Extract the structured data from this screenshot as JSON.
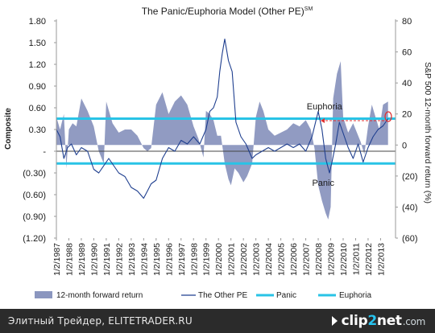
{
  "chart_data": {
    "type": "area",
    "title": "The Panic/Euphoria Model (Other PE)",
    "title_superscript": "SM",
    "ylabel_left": "Composite",
    "ylabel_right": "S&P 500 12-month forward return (%)",
    "ylim_left": [
      -1.2,
      1.8
    ],
    "ylim_right": [
      -60,
      80
    ],
    "yticks_left": [
      "1.80",
      "1.50",
      "1.20",
      "0.90",
      "0.60",
      "0.30",
      "-",
      "(0.30)",
      "(0.60)",
      "(0.90)",
      "(1.20)"
    ],
    "yticks_right": [
      "80",
      "60",
      "40",
      "20",
      "0",
      "(20)",
      "(40)",
      "(60)"
    ],
    "xticks": [
      "1/2/1987",
      "1/2/1988",
      "1/2/1989",
      "1/2/1990",
      "1/2/1991",
      "1/2/1992",
      "1/2/1993",
      "1/2/1994",
      "1/2/1995",
      "1/2/1996",
      "1/2/1997",
      "1/2/1998",
      "1/2/1999",
      "1/2/2000",
      "1/2/2001",
      "1/2/2002",
      "1/2/2003",
      "1/2/2004",
      "1/2/2005",
      "1/2/2006",
      "1/2/2007",
      "1/2/2008",
      "1/2/2009",
      "1/2/2010",
      "1/2/2011",
      "1/2/2012",
      "1/2/2013"
    ],
    "series": [
      {
        "name": "12-month forward return",
        "axis": "right",
        "color": "#8b96bf",
        "x": [
          1987.0,
          1987.3,
          1987.6,
          1987.8,
          1988.0,
          1988.3,
          1988.6,
          1989.0,
          1989.5,
          1990.0,
          1990.4,
          1990.8,
          1991.0,
          1991.5,
          1992.0,
          1992.5,
          1993.0,
          1993.5,
          1994.0,
          1994.3,
          1994.6,
          1995.0,
          1995.5,
          1996.0,
          1996.5,
          1997.0,
          1997.5,
          1998.0,
          1998.4,
          1998.8,
          1999.0,
          1999.3,
          1999.6,
          1999.9,
          2000.2,
          2000.5,
          2000.8,
          2001.0,
          2001.3,
          2001.6,
          2002.0,
          2002.3,
          2002.7,
          2003.0,
          2003.3,
          2003.6,
          2004.0,
          2004.5,
          2005.0,
          2005.5,
          2006.0,
          2006.5,
          2007.0,
          2007.4,
          2007.7,
          2008.0,
          2008.3,
          2008.6,
          2008.8,
          2009.0,
          2009.2,
          2009.5,
          2009.8,
          2010.0,
          2010.4,
          2010.8,
          2011.0,
          2011.4,
          2011.7,
          2012.0,
          2012.3,
          2012.6,
          2012.9,
          2013.2,
          2013.6
        ],
        "values": [
          18,
          10,
          20,
          -15,
          10,
          14,
          12,
          30,
          22,
          12,
          -4,
          -12,
          28,
          14,
          8,
          10,
          10,
          6,
          -2,
          -4,
          -2,
          26,
          34,
          20,
          28,
          32,
          26,
          12,
          4,
          -8,
          22,
          20,
          16,
          6,
          6,
          -12,
          -22,
          -26,
          -15,
          -18,
          -24,
          -20,
          -12,
          18,
          28,
          22,
          10,
          6,
          8,
          10,
          14,
          12,
          16,
          10,
          -2,
          -26,
          -36,
          -44,
          -48,
          -40,
          30,
          46,
          54,
          18,
          8,
          14,
          10,
          2,
          -6,
          12,
          26,
          18,
          10,
          26,
          28
        ]
      },
      {
        "name": "The Other PE",
        "axis": "left",
        "color": "#1f3f8f",
        "x": [
          1987.0,
          1987.3,
          1987.6,
          1987.9,
          1988.2,
          1988.6,
          1989.0,
          1989.5,
          1990.0,
          1990.4,
          1990.8,
          1991.2,
          1991.6,
          1992.0,
          1992.5,
          1993.0,
          1993.5,
          1994.0,
          1994.3,
          1994.6,
          1995.0,
          1995.5,
          1996.0,
          1996.5,
          1997.0,
          1997.5,
          1998.0,
          1998.5,
          1999.0,
          1999.3,
          1999.6,
          1999.9,
          2000.1,
          2000.3,
          2000.5,
          2000.8,
          2001.1,
          2001.4,
          2001.8,
          2002.2,
          2002.7,
          2003.0,
          2003.5,
          2004.0,
          2004.5,
          2005.0,
          2005.5,
          2006.0,
          2006.5,
          2007.0,
          2007.5,
          2008.0,
          2008.3,
          2008.6,
          2008.9,
          2009.1,
          2009.4,
          2009.7,
          2010.0,
          2010.4,
          2010.8,
          2011.2,
          2011.6,
          2012.0,
          2012.4,
          2012.8,
          2013.2,
          2013.6
        ],
        "values": [
          0.3,
          0.2,
          -0.1,
          0.05,
          0.1,
          -0.05,
          0.05,
          0.0,
          -0.25,
          -0.3,
          -0.2,
          -0.1,
          -0.2,
          -0.3,
          -0.35,
          -0.5,
          -0.55,
          -0.65,
          -0.55,
          -0.45,
          -0.4,
          -0.1,
          0.05,
          0.0,
          0.15,
          0.1,
          0.2,
          0.1,
          0.3,
          0.55,
          0.6,
          0.75,
          1.1,
          1.35,
          1.55,
          1.25,
          1.1,
          0.4,
          0.2,
          0.1,
          -0.1,
          -0.05,
          0.0,
          0.05,
          0.0,
          0.05,
          0.1,
          0.05,
          0.1,
          0.0,
          0.2,
          0.55,
          0.3,
          -0.1,
          -0.3,
          -0.15,
          0.1,
          0.4,
          0.25,
          0.05,
          -0.1,
          0.1,
          -0.15,
          0.05,
          0.2,
          0.3,
          0.35,
          0.45
        ]
      },
      {
        "name": "Panic",
        "axis": "left",
        "color": "#29c3e6",
        "value": -0.17
      },
      {
        "name": "Euphoria",
        "axis": "left",
        "color": "#29c3e6",
        "value": 0.45
      }
    ],
    "annotations": [
      {
        "text": "Euphoria",
        "x": 2008.5,
        "y": 0.58
      },
      {
        "text": "Panic",
        "x": 2008.4,
        "y": -0.48
      }
    ],
    "legend_position": "bottom",
    "grid": false
  },
  "footer": {
    "source_text": "Элитный Трейдер, ELITETRADER.RU",
    "brand": {
      "part1": "clip",
      "part2": "2",
      "part3": "net",
      "tld": ".com"
    }
  }
}
